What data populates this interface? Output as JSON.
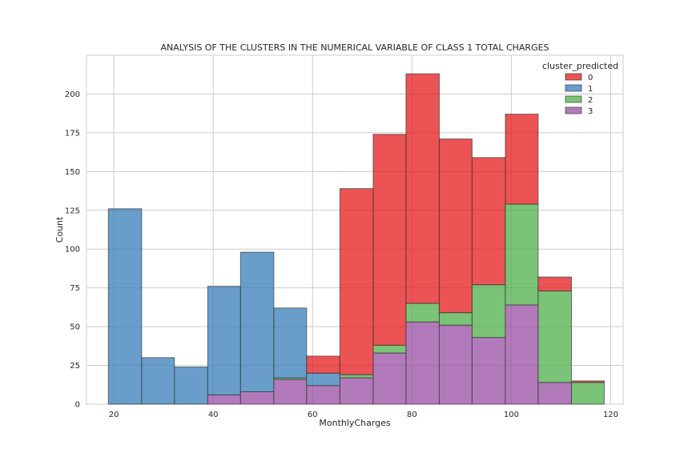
{
  "chart_data": {
    "type": "bar",
    "stacked": true,
    "histogram": true,
    "title": "ANALYSIS OF THE CLUSTERS IN  THE NUMERICAL VARIABLE OF CLASS 1 TOTAL CHARGES",
    "xlabel": "MonthlyCharges",
    "ylabel": "Count",
    "xlim": [
      14.5,
      122.5
    ],
    "ylim": [
      0,
      225
    ],
    "xticks": [
      20,
      40,
      60,
      80,
      100,
      120
    ],
    "yticks": [
      0,
      25,
      50,
      75,
      100,
      125,
      150,
      175,
      200
    ],
    "grid": true,
    "legend": {
      "title": "cluster_predicted",
      "placement": "top-right"
    },
    "bins": [
      [
        18.9,
        25.6
      ],
      [
        25.6,
        32.2
      ],
      [
        32.2,
        38.9
      ],
      [
        38.9,
        45.5
      ],
      [
        45.5,
        52.2
      ],
      [
        52.2,
        58.8
      ],
      [
        58.8,
        65.5
      ],
      [
        65.5,
        72.2
      ],
      [
        72.2,
        78.8
      ],
      [
        78.8,
        85.5
      ],
      [
        85.5,
        92.1
      ],
      [
        92.1,
        98.8
      ],
      [
        98.8,
        105.4
      ],
      [
        105.4,
        112.1
      ],
      [
        112.1,
        118.7
      ]
    ],
    "series": [
      {
        "name": "3",
        "color": "#984ea3",
        "values": [
          0,
          0,
          0,
          6,
          8,
          16,
          12,
          17,
          33,
          53,
          51,
          43,
          64,
          14,
          0
        ]
      },
      {
        "name": "2",
        "color": "#4daf4a",
        "values": [
          0,
          0,
          0,
          0,
          0,
          1,
          0,
          2,
          5,
          12,
          8,
          34,
          65,
          59,
          14
        ]
      },
      {
        "name": "1",
        "color": "#377eb8",
        "values": [
          126,
          30,
          24,
          70,
          90,
          45,
          8,
          0,
          0,
          0,
          0,
          0,
          0,
          0,
          0
        ]
      },
      {
        "name": "0",
        "color": "#e41a1c",
        "values": [
          0,
          0,
          0,
          0,
          0,
          0,
          11,
          120,
          136,
          148,
          112,
          82,
          58,
          9,
          1
        ]
      }
    ],
    "legend_order": [
      "0",
      "1",
      "2",
      "3"
    ]
  }
}
